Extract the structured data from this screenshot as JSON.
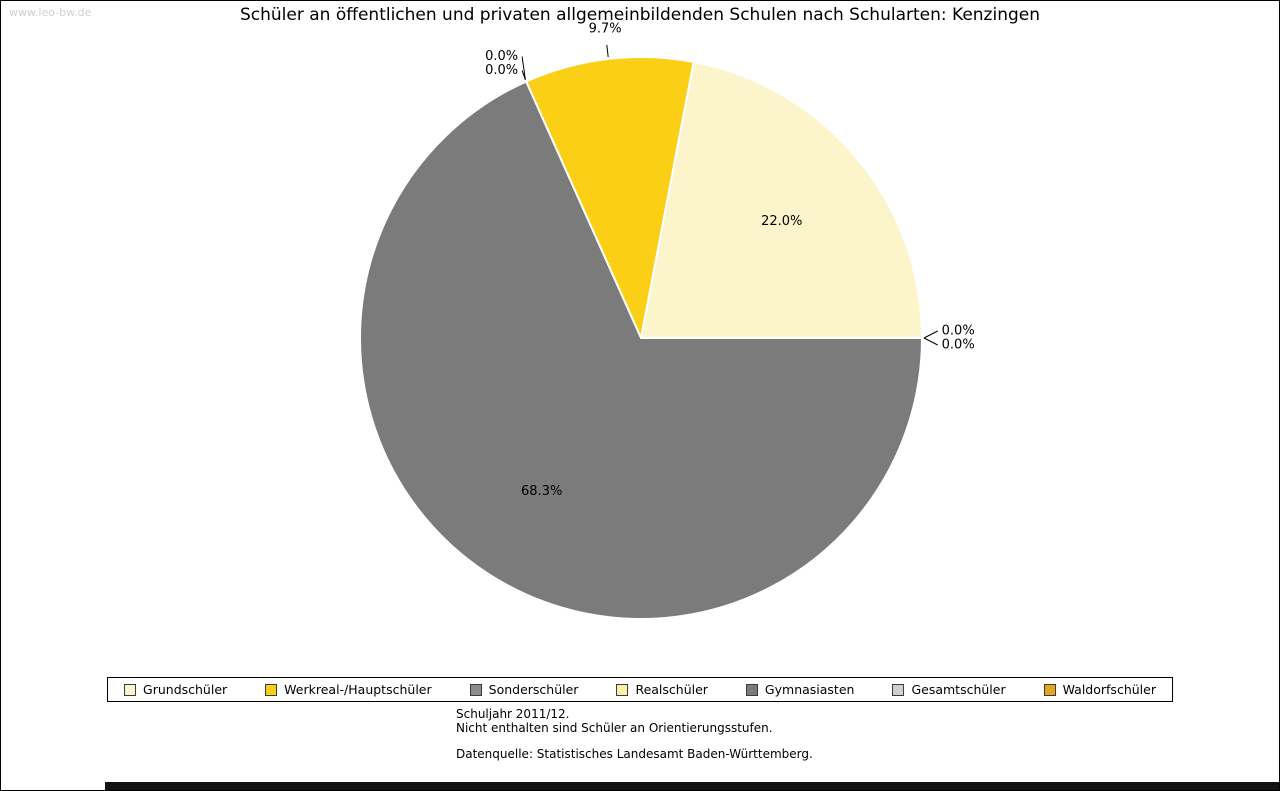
{
  "watermark": "www.leo-bw.de",
  "chart_data": {
    "type": "pie",
    "title": "Schüler an öffentlichen und privaten allgemeinbildenden Schulen nach Schularten: Kenzingen",
    "categories": [
      "Grundschüler",
      "Werkreal-/Hauptschüler",
      "Sonderschüler",
      "Realschüler",
      "Gymnasiasten",
      "Gesamtschüler",
      "Waldorfschüler"
    ],
    "values": [
      22.0,
      9.7,
      0.0,
      0.0,
      68.3,
      0.0,
      0.0
    ],
    "slice_labels": [
      "22.0%",
      "9.7%",
      "0.0%",
      "0.0%",
      "68.3%",
      "0.0%",
      "0.0%"
    ],
    "colors": [
      "#FCF5CB",
      "#FBCF16",
      "#8B8B8B",
      "#FBF0A3",
      "#7B7B7B",
      "#CFCFCF",
      "#E2A71E"
    ],
    "start_angle_deg": 0,
    "direction": "counterclockwise",
    "legend_position": "bottom",
    "slice_border_color": "#FFFFFF"
  },
  "footnotes": {
    "line1": "Schuljahr 2011/12.",
    "line2": "Nicht enthalten sind Schüler an Orientierungsstufen.",
    "source": "Datenquelle: Statistisches Landesamt Baden-Württemberg."
  }
}
